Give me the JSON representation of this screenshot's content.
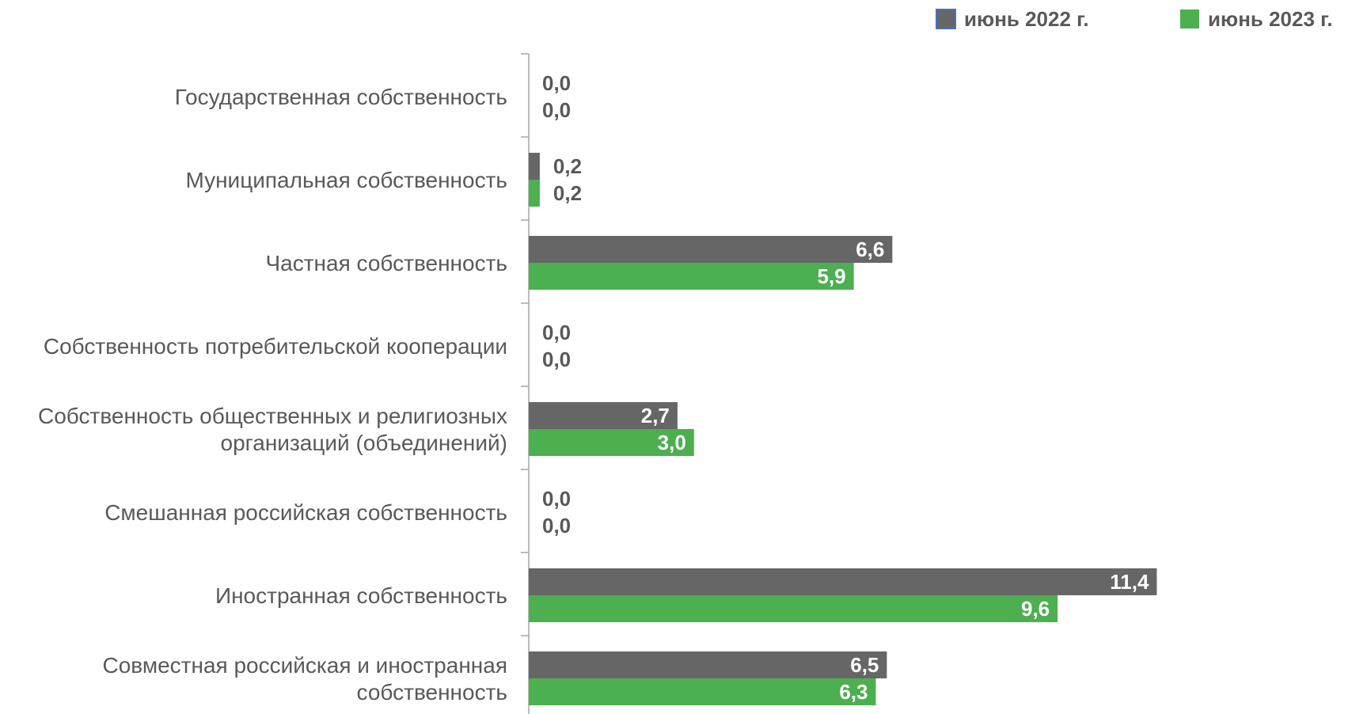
{
  "chart_data": {
    "type": "bar",
    "orientation": "horizontal",
    "categories": [
      [
        "Государственная собственность"
      ],
      [
        "Муниципальная собственность"
      ],
      [
        "Частная собственность"
      ],
      [
        "Собственность потребительской кооперации"
      ],
      [
        "Собственность общественных и религиозных",
        "организаций (объединений)"
      ],
      [
        "Смешанная российская собственность"
      ],
      [
        "Иностранная собственность"
      ],
      [
        "Совместная российская и иностранная",
        "собственность"
      ]
    ],
    "series": [
      {
        "name": "июнь 2022 г.",
        "color": "#666666",
        "values": [
          0.0,
          0.2,
          6.6,
          0.0,
          2.7,
          0.0,
          11.4,
          6.5
        ],
        "labels": [
          "0,0",
          "0,2",
          "6,6",
          "0,0",
          "2,7",
          "0,0",
          "11,4",
          "6,5"
        ]
      },
      {
        "name": "июнь 2023 г.",
        "color": "#4caf50",
        "values": [
          0.0,
          0.2,
          5.9,
          0.0,
          3.0,
          0.0,
          9.6,
          6.3
        ],
        "labels": [
          "0,0",
          "0,2",
          "5,9",
          "0,0",
          "3,0",
          "0,0",
          "9,6",
          "6,3"
        ]
      }
    ],
    "xlim": [
      0,
      12.3
    ],
    "grid": false,
    "legend": "top-right",
    "axis_color": "#a6a6a6",
    "label_color_outside": "#595959",
    "label_color_inside": "#ffffff"
  }
}
